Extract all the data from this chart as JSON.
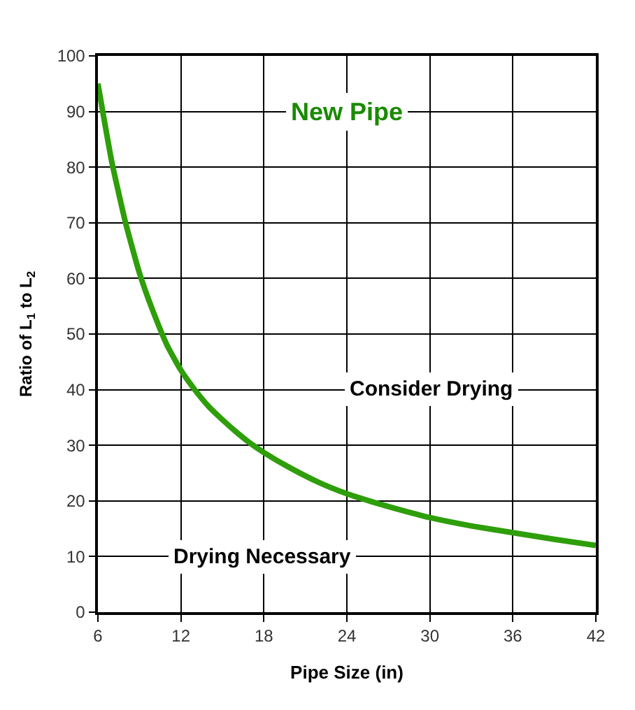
{
  "chart_data": {
    "type": "line",
    "xlabel": "Pipe Size (in)",
    "ylabel": "Ratio of L$_{1}$ to L$_{2}$",
    "x": [
      6,
      7,
      8,
      9,
      10,
      11,
      12,
      13,
      14,
      15,
      16,
      17,
      18,
      20,
      22,
      24,
      26,
      28,
      30,
      33,
      36,
      39,
      42
    ],
    "series": [
      {
        "color": "#2e9e0a",
        "values": [
          95,
          81,
          70,
          61,
          54,
          48,
          43.5,
          40,
          37,
          34.6,
          32.4,
          30.4,
          28.7,
          25.8,
          23.3,
          21.3,
          19.7,
          18.3,
          17,
          15.5,
          14.3,
          13.1,
          12
        ]
      }
    ],
    "xlim": [
      6,
      42
    ],
    "xticks": [
      6,
      12,
      18,
      24,
      30,
      36,
      42
    ],
    "ylim": [
      0,
      100
    ],
    "yticks": [
      0,
      10,
      20,
      30,
      40,
      50,
      60,
      70,
      80,
      90,
      100
    ],
    "grid": true,
    "marker": "none",
    "line_style": "solid",
    "annotations": [
      "New Pipe",
      "Consider Drying",
      "Drying Necessary"
    ]
  }
}
